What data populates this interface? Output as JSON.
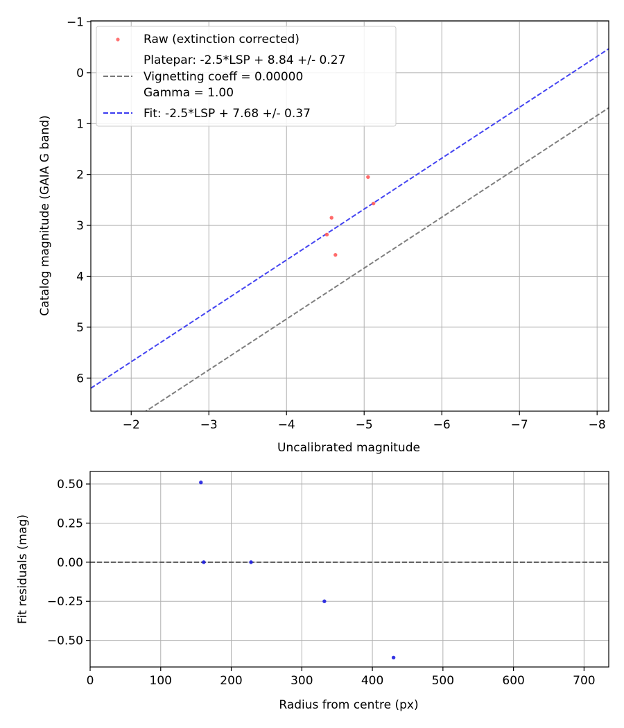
{
  "chart_data": [
    {
      "type": "scatter",
      "xlabel": "Uncalibrated magnitude",
      "ylabel": "Catalog magnitude (GAIA G band)",
      "xlim": [
        -1.48,
        -8.15
      ],
      "ylim": [
        6.65,
        -1.02
      ],
      "xticks": [
        -2,
        -3,
        -4,
        -5,
        -6,
        -7,
        -8
      ],
      "xtick_labels": [
        "−2",
        "−3",
        "−4",
        "−5",
        "−6",
        "−7",
        "−8"
      ],
      "yticks": [
        -1,
        0,
        1,
        2,
        3,
        4,
        5,
        6
      ],
      "ytick_labels": [
        "−1",
        "0",
        "1",
        "2",
        "3",
        "4",
        "5",
        "6"
      ],
      "grid": true,
      "series": [
        {
          "name": "Raw (extinction corrected)",
          "kind": "points",
          "color": "#ff5a5a",
          "x": [
            -4.52,
            -4.58,
            -4.63,
            -5.05,
            -5.12
          ],
          "y": [
            3.18,
            2.85,
            3.58,
            2.05,
            2.57
          ]
        },
        {
          "name": "Platepar: -2.5*LSP + 8.84 +/- 0.27",
          "kind": "line",
          "color": "#777777",
          "dash": "dashed",
          "slope": 1,
          "intercept": 8.84
        },
        {
          "name": "Fit: -2.5*LSP + 7.68 +/- 0.37",
          "kind": "line",
          "color": "#3a3af0",
          "dash": "dashed",
          "slope": 1,
          "intercept": 7.68
        }
      ],
      "legend": {
        "position": "top-left",
        "entries": [
          {
            "marker": "dot",
            "color": "#ff5a5a",
            "lines": [
              "Raw (extinction corrected)"
            ]
          },
          {
            "marker": "dashed",
            "color": "#777777",
            "lines": [
              "Platepar: -2.5*LSP + 8.84 +/- 0.27",
              "Vignetting coeff = 0.00000",
              "Gamma = 1.00"
            ]
          },
          {
            "marker": "dashed",
            "color": "#3a3af0",
            "lines": [
              "Fit: -2.5*LSP + 7.68 +/- 0.37"
            ]
          }
        ]
      }
    },
    {
      "type": "scatter",
      "xlabel": "Radius from centre (px)",
      "ylabel": "Fit residuals (mag)",
      "xlim": [
        0,
        735
      ],
      "ylim": [
        -0.67,
        0.58
      ],
      "xticks": [
        0,
        100,
        200,
        300,
        400,
        500,
        600,
        700
      ],
      "xtick_labels": [
        "0",
        "100",
        "200",
        "300",
        "400",
        "500",
        "600",
        "700"
      ],
      "yticks": [
        0.5,
        0.25,
        0,
        -0.25,
        -0.5
      ],
      "ytick_labels": [
        "0.50",
        "0.25",
        "0.00",
        "−0.25",
        "−0.50"
      ],
      "grid": true,
      "zero_line": {
        "y": 0,
        "color": "#555555",
        "dash": "dashed"
      },
      "series": [
        {
          "name": "residuals",
          "kind": "points",
          "color": "#1f1fe0",
          "x": [
            157,
            161,
            228,
            332,
            430
          ],
          "y": [
            0.51,
            0.0,
            0.0,
            -0.25,
            -0.61
          ]
        }
      ]
    }
  ]
}
